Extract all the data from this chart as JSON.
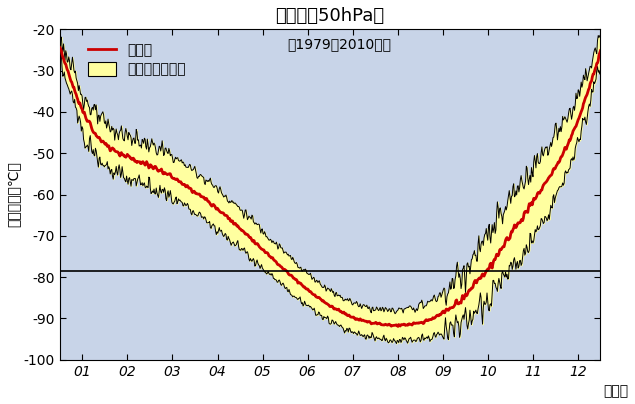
{
  "title": "南半球（50hPa）",
  "ylabel": "最低気温（℃）",
  "xlabel": "（月）",
  "legend_mean": "平均値",
  "legend_range": "最高最低の範囲",
  "legend_period": "（1979～2010年）",
  "ylim": [
    -100,
    -20
  ],
  "yticks": [
    -100,
    -90,
    -80,
    -70,
    -60,
    -50,
    -40,
    -30,
    -20
  ],
  "hline_y": -78.5,
  "bg_color": "#c8d4e8",
  "band_color": "#ffffa0",
  "mean_color": "#cc0000",
  "border_color": "#000000",
  "monthly_mean": [
    -48.0,
    -50.5,
    -55.0,
    -63.0,
    -73.0,
    -84.0,
    -91.0,
    -92.5,
    -91.0,
    -80.0,
    -60.0,
    -48.5
  ],
  "monthly_upper_offset": [
    5.0,
    5.0,
    5.0,
    5.0,
    4.5,
    4.0,
    3.5,
    3.5,
    4.0,
    8.0,
    10.0,
    6.0
  ],
  "monthly_lower_offset": [
    5.0,
    5.0,
    5.0,
    5.0,
    4.5,
    4.0,
    3.5,
    3.5,
    4.0,
    8.0,
    10.0,
    6.0
  ]
}
